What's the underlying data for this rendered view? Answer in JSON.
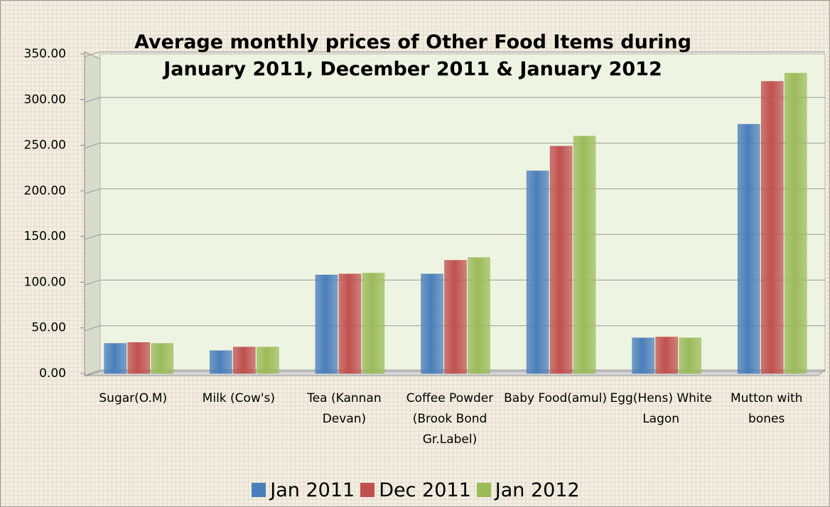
{
  "chart_data": {
    "type": "bar",
    "title": "Average monthly prices of Other Food Items during January 2011, December 2011 &  January 2012",
    "categories": [
      "Sugar(O.M)",
      "Milk  (Cow's)",
      "Tea (Kannan Devan)",
      "Coffee Powder (Brook Bond Gr.Label)",
      "Baby Food(amul)",
      "Egg(Hens) White Lagon",
      "Mutton with bones"
    ],
    "series": [
      {
        "name": "Jan 2011",
        "color": "#4a7ebb",
        "values": [
          33,
          25,
          108,
          109,
          222,
          39,
          273
        ]
      },
      {
        "name": "Dec 2011",
        "color": "#c0504d",
        "values": [
          34,
          29,
          109,
          124,
          249,
          40,
          320
        ]
      },
      {
        "name": "Jan 2012",
        "color": "#9bbb59",
        "values": [
          33,
          29,
          110,
          127,
          260,
          39,
          329
        ]
      }
    ],
    "ylim": [
      0,
      350
    ],
    "yticks": [
      {
        "value": 0,
        "label": "0.00"
      },
      {
        "value": 50,
        "label": "50.00"
      },
      {
        "value": 100,
        "label": "100.00"
      },
      {
        "value": 150,
        "label": "150.00"
      },
      {
        "value": 200,
        "label": "200.00"
      },
      {
        "value": 250,
        "label": "250.00"
      },
      {
        "value": 300,
        "label": "300.00"
      },
      {
        "value": 350,
        "label": "350.00"
      }
    ],
    "grid": true,
    "legend": "bottom"
  }
}
